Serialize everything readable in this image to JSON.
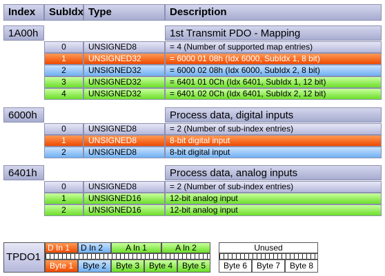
{
  "header": {
    "index": "Index",
    "subidx": "SubIdx",
    "type": "Type",
    "description": "Description"
  },
  "groups": [
    {
      "index": "1A00h",
      "title": "1st Transmit PDO - Mapping",
      "rows": [
        {
          "sub": "0",
          "type": "UNSIGNED8",
          "desc": "= 4 (Number of supported map entries)",
          "color": "lavender"
        },
        {
          "sub": "1",
          "type": "UNSIGNED32",
          "desc": "= 6000 01 08h (Idx 6000, SubIdx 1, 8 bit)",
          "color": "red"
        },
        {
          "sub": "2",
          "type": "UNSIGNED32",
          "desc": "= 6000 02 08h (Idx 6000, SubIdx 2, 8 bit)",
          "color": "blue"
        },
        {
          "sub": "3",
          "type": "UNSIGNED32",
          "desc": "= 6401 01 0Ch (Idx 6401, SubIdx 1, 12 bit)",
          "color": "green"
        },
        {
          "sub": "4",
          "type": "UNSIGNED32",
          "desc": "= 6401 02 0Ch (Idx 6401, SubIdx 2, 12 bit)",
          "color": "green"
        }
      ]
    },
    {
      "index": "6000h",
      "title": "Process data, digital inputs",
      "rows": [
        {
          "sub": "0",
          "type": "UNSIGNED8",
          "desc": "= 2 (Number of sub-index entries)",
          "color": "lavender"
        },
        {
          "sub": "1",
          "type": "UNSIGNED8",
          "desc": "8-bit digital input",
          "color": "red"
        },
        {
          "sub": "2",
          "type": "UNSIGNED8",
          "desc": "8-bit digital input",
          "color": "blue"
        }
      ]
    },
    {
      "index": "6401h",
      "title": "Process data, analog inputs",
      "rows": [
        {
          "sub": "0",
          "type": "UNSIGNED8",
          "desc": "= 2 (Number of sub-index entries)",
          "color": "lavender"
        },
        {
          "sub": "1",
          "type": "UNSIGNED16",
          "desc": "12-bit analog input",
          "color": "green"
        },
        {
          "sub": "2",
          "type": "UNSIGNED16",
          "desc": "12-bit analog input",
          "color": "green"
        }
      ]
    }
  ],
  "pdo": {
    "label": "TPDO1",
    "top": [
      {
        "text": "D In 1",
        "color": "red"
      },
      {
        "text": "D In 2",
        "color": "blue"
      },
      {
        "text": "A In 1",
        "color": "green"
      },
      {
        "text": "A In 2",
        "color": "green"
      }
    ],
    "bytes": [
      {
        "text": "Byte 1",
        "color": "red"
      },
      {
        "text": "Byte 2",
        "color": "blue"
      },
      {
        "text": "Byte 3",
        "color": "green"
      },
      {
        "text": "Byte 4",
        "color": "green"
      },
      {
        "text": "Byte 5",
        "color": "green"
      }
    ],
    "unused_label": "Unused",
    "unused_bytes": [
      "Byte 6",
      "Byte 7",
      "Byte 8"
    ]
  }
}
